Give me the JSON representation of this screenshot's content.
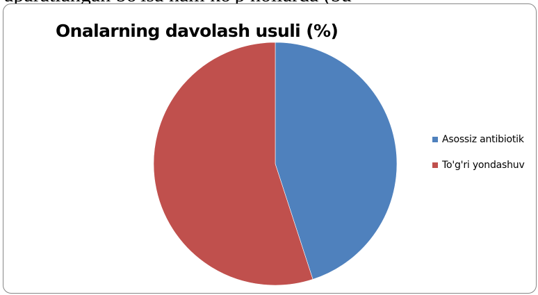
{
  "page": {
    "top_text": "aparatlangan bo'lsa ham ko'p hollarda (bu"
  },
  "chart_data": {
    "type": "pie",
    "title": "Onalarning davolash usuli (%)",
    "categories": [
      "Asossiz antibiotik",
      "To'g'ri yondashuv"
    ],
    "values": [
      45,
      55
    ],
    "colors": [
      "#4F81BD",
      "#C0504D"
    ],
    "legend_position": "right"
  }
}
